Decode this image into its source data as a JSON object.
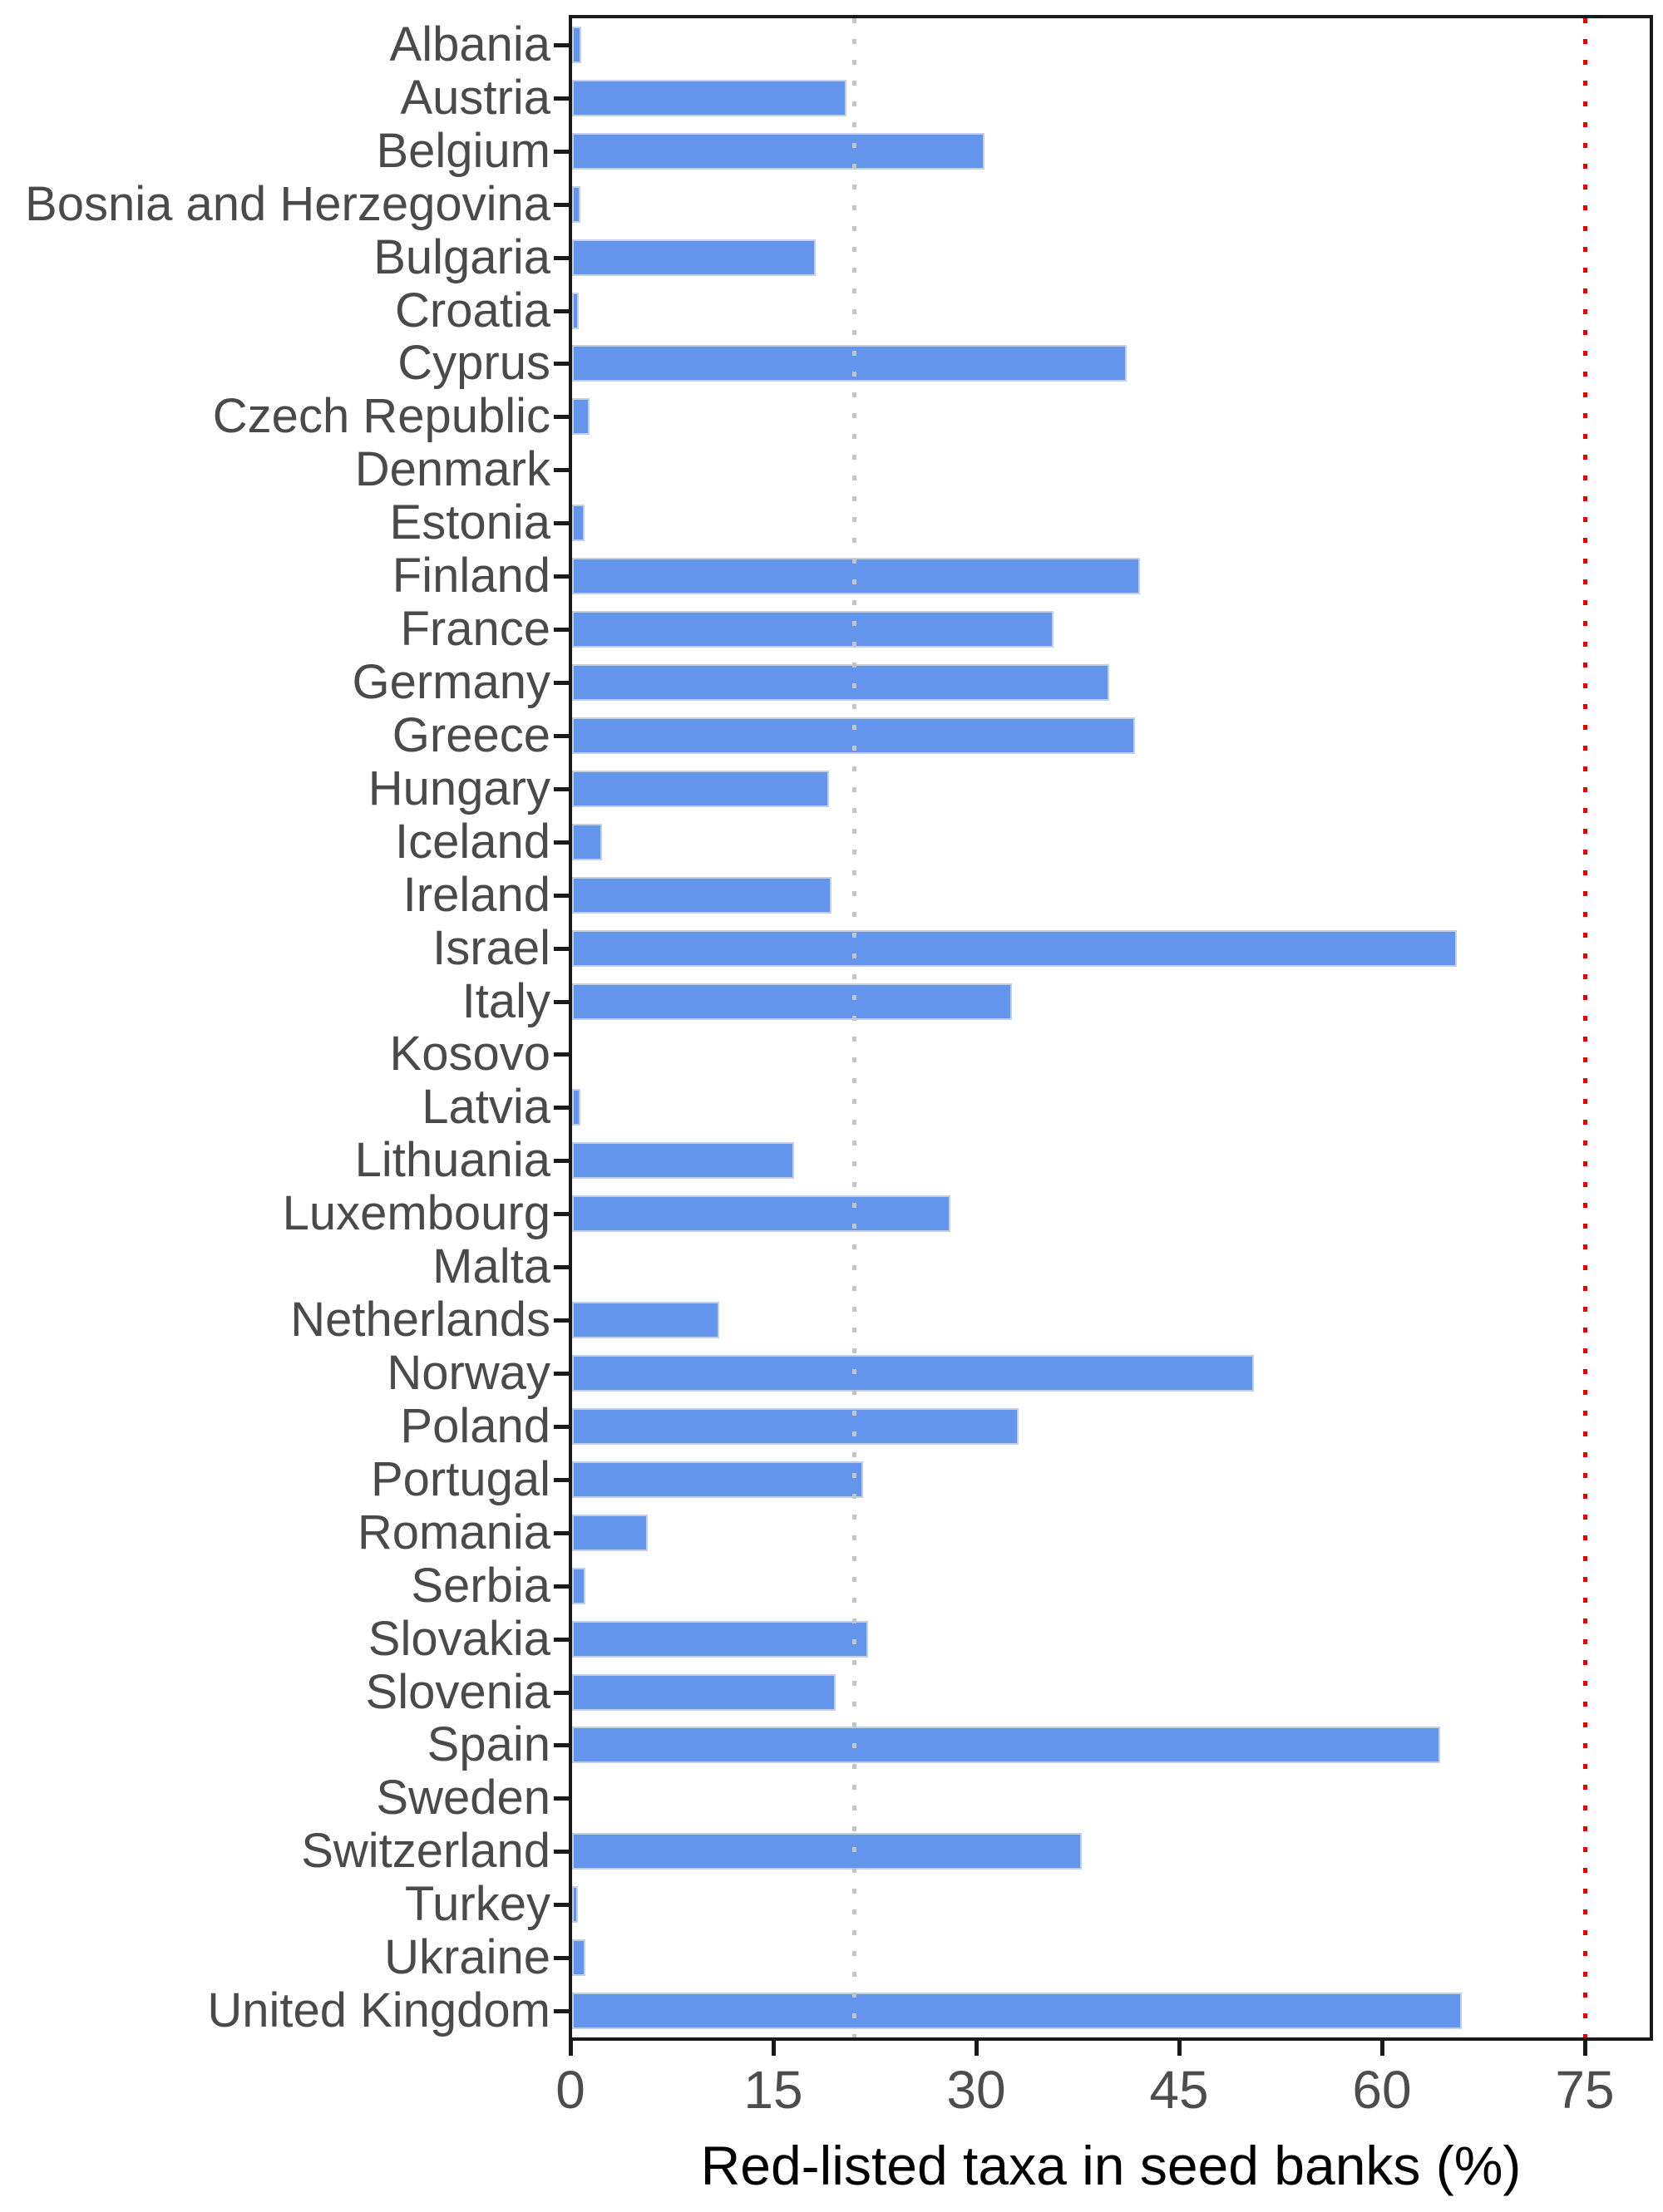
{
  "chart_data": {
    "type": "bar",
    "orientation": "horizontal",
    "title": "",
    "xlabel": "Red-listed taxa in seed banks (%)",
    "ylabel": "",
    "xlim": [
      0,
      80
    ],
    "xticks": [
      0,
      15,
      30,
      45,
      60,
      75
    ],
    "grid": false,
    "legend": "none",
    "bar_color": "#6495ED",
    "bar_border_color": "#C3CFE9",
    "axis_color": "#1A1A1A",
    "tick_label_color": "#4D4D4D",
    "category_label_color": "#4A4A4A",
    "categories": [
      "Albania",
      "Austria",
      "Belgium",
      "Bosnia and Herzegovina",
      "Bulgaria",
      "Croatia",
      "Cyprus",
      "Czech Republic",
      "Denmark",
      "Estonia",
      "Finland",
      "France",
      "Germany",
      "Greece",
      "Hungary",
      "Iceland",
      "Ireland",
      "Israel",
      "Italy",
      "Kosovo",
      "Latvia",
      "Lithuania",
      "Luxembourg",
      "Malta",
      "Netherlands",
      "Norway",
      "Poland",
      "Portugal",
      "Romania",
      "Serbia",
      "Slovakia",
      "Slovenia",
      "Spain",
      "Sweden",
      "Switzerland",
      "Turkey",
      "Ukraine",
      "United Kingdom"
    ],
    "values": [
      0.7,
      20.3,
      30.5,
      0.6,
      18.0,
      0.5,
      41.0,
      1.3,
      0,
      0.9,
      42.0,
      35.6,
      39.7,
      41.6,
      19.0,
      2.2,
      19.2,
      65.4,
      32.5,
      0,
      0.6,
      16.4,
      28.0,
      0,
      10.9,
      50.4,
      33.0,
      21.5,
      5.6,
      1.0,
      21.9,
      19.5,
      64.2,
      0,
      37.7,
      0.4,
      1.0,
      65.8
    ],
    "reference_lines": [
      {
        "x": 21,
        "color": "#C4C4C4",
        "style": "dotted",
        "name": "mean-reference-line"
      },
      {
        "x": 75,
        "color": "#EE0000",
        "style": "dotted",
        "name": "target-reference-line"
      }
    ]
  }
}
